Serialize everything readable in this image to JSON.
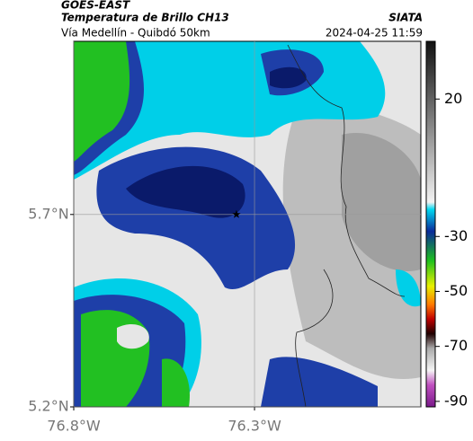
{
  "header": {
    "source": "GOES-EAST",
    "title": "Temperatura de Brillo CH13",
    "brand": "SIATA",
    "subtitle": "Vía Medellín - Quibdó 50km",
    "timestamp": "2024-04-25 11:59"
  },
  "map": {
    "xlim": [
      -76.8,
      -75.84
    ],
    "ylim": [
      5.2,
      6.15
    ],
    "xticks": [
      {
        "value": -76.8,
        "label": "76.8°W"
      },
      {
        "value": -76.3,
        "label": "76.3°W"
      }
    ],
    "yticks": [
      {
        "value": 5.2,
        "label": "5.2°N"
      },
      {
        "value": 5.7,
        "label": "5.7°N"
      }
    ],
    "grid": true,
    "marker": {
      "lon": -76.35,
      "lat": 5.7
    }
  },
  "colorbar": {
    "lim": [
      -92,
      41
    ],
    "ticks": [
      20,
      -30,
      -50,
      -70,
      -90
    ]
  }
}
